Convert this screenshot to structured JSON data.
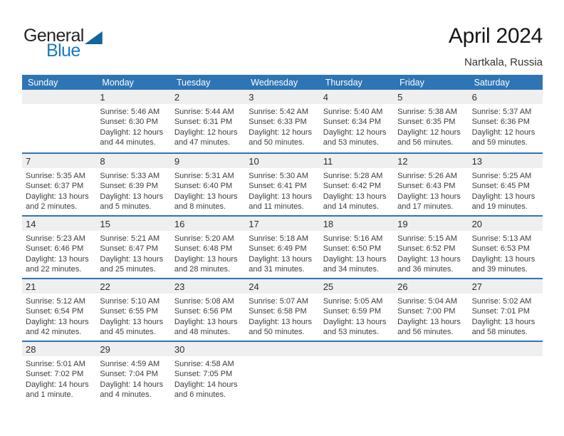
{
  "logo": {
    "part1": "General",
    "part2": "Blue"
  },
  "header": {
    "title": "April 2024",
    "subtitle": "Nartkala, Russia"
  },
  "colors": {
    "header_blue": "#2e75b6",
    "week_divider_blue": "#2e74b5",
    "day_band_gray": "#efefef",
    "logo_text_blue": "#1779c4",
    "logo_triangle_blue": "#14649e"
  },
  "calendar": {
    "weekdays": [
      "Sunday",
      "Monday",
      "Tuesday",
      "Wednesday",
      "Thursday",
      "Friday",
      "Saturday"
    ],
    "weeks": [
      [
        null,
        {
          "day": "1",
          "lines": [
            "Sunrise: 5:46 AM",
            "Sunset: 6:30 PM",
            "Daylight: 12 hours",
            "and 44 minutes."
          ]
        },
        {
          "day": "2",
          "lines": [
            "Sunrise: 5:44 AM",
            "Sunset: 6:31 PM",
            "Daylight: 12 hours",
            "and 47 minutes."
          ]
        },
        {
          "day": "3",
          "lines": [
            "Sunrise: 5:42 AM",
            "Sunset: 6:33 PM",
            "Daylight: 12 hours",
            "and 50 minutes."
          ]
        },
        {
          "day": "4",
          "lines": [
            "Sunrise: 5:40 AM",
            "Sunset: 6:34 PM",
            "Daylight: 12 hours",
            "and 53 minutes."
          ]
        },
        {
          "day": "5",
          "lines": [
            "Sunrise: 5:38 AM",
            "Sunset: 6:35 PM",
            "Daylight: 12 hours",
            "and 56 minutes."
          ]
        },
        {
          "day": "6",
          "lines": [
            "Sunrise: 5:37 AM",
            "Sunset: 6:36 PM",
            "Daylight: 12 hours",
            "and 59 minutes."
          ]
        }
      ],
      [
        {
          "day": "7",
          "lines": [
            "Sunrise: 5:35 AM",
            "Sunset: 6:37 PM",
            "Daylight: 13 hours",
            "and 2 minutes."
          ]
        },
        {
          "day": "8",
          "lines": [
            "Sunrise: 5:33 AM",
            "Sunset: 6:39 PM",
            "Daylight: 13 hours",
            "and 5 minutes."
          ]
        },
        {
          "day": "9",
          "lines": [
            "Sunrise: 5:31 AM",
            "Sunset: 6:40 PM",
            "Daylight: 13 hours",
            "and 8 minutes."
          ]
        },
        {
          "day": "10",
          "lines": [
            "Sunrise: 5:30 AM",
            "Sunset: 6:41 PM",
            "Daylight: 13 hours",
            "and 11 minutes."
          ]
        },
        {
          "day": "11",
          "lines": [
            "Sunrise: 5:28 AM",
            "Sunset: 6:42 PM",
            "Daylight: 13 hours",
            "and 14 minutes."
          ]
        },
        {
          "day": "12",
          "lines": [
            "Sunrise: 5:26 AM",
            "Sunset: 6:43 PM",
            "Daylight: 13 hours",
            "and 17 minutes."
          ]
        },
        {
          "day": "13",
          "lines": [
            "Sunrise: 5:25 AM",
            "Sunset: 6:45 PM",
            "Daylight: 13 hours",
            "and 19 minutes."
          ]
        }
      ],
      [
        {
          "day": "14",
          "lines": [
            "Sunrise: 5:23 AM",
            "Sunset: 6:46 PM",
            "Daylight: 13 hours",
            "and 22 minutes."
          ]
        },
        {
          "day": "15",
          "lines": [
            "Sunrise: 5:21 AM",
            "Sunset: 6:47 PM",
            "Daylight: 13 hours",
            "and 25 minutes."
          ]
        },
        {
          "day": "16",
          "lines": [
            "Sunrise: 5:20 AM",
            "Sunset: 6:48 PM",
            "Daylight: 13 hours",
            "and 28 minutes."
          ]
        },
        {
          "day": "17",
          "lines": [
            "Sunrise: 5:18 AM",
            "Sunset: 6:49 PM",
            "Daylight: 13 hours",
            "and 31 minutes."
          ]
        },
        {
          "day": "18",
          "lines": [
            "Sunrise: 5:16 AM",
            "Sunset: 6:50 PM",
            "Daylight: 13 hours",
            "and 34 minutes."
          ]
        },
        {
          "day": "19",
          "lines": [
            "Sunrise: 5:15 AM",
            "Sunset: 6:52 PM",
            "Daylight: 13 hours",
            "and 36 minutes."
          ]
        },
        {
          "day": "20",
          "lines": [
            "Sunrise: 5:13 AM",
            "Sunset: 6:53 PM",
            "Daylight: 13 hours",
            "and 39 minutes."
          ]
        }
      ],
      [
        {
          "day": "21",
          "lines": [
            "Sunrise: 5:12 AM",
            "Sunset: 6:54 PM",
            "Daylight: 13 hours",
            "and 42 minutes."
          ]
        },
        {
          "day": "22",
          "lines": [
            "Sunrise: 5:10 AM",
            "Sunset: 6:55 PM",
            "Daylight: 13 hours",
            "and 45 minutes."
          ]
        },
        {
          "day": "23",
          "lines": [
            "Sunrise: 5:08 AM",
            "Sunset: 6:56 PM",
            "Daylight: 13 hours",
            "and 48 minutes."
          ]
        },
        {
          "day": "24",
          "lines": [
            "Sunrise: 5:07 AM",
            "Sunset: 6:58 PM",
            "Daylight: 13 hours",
            "and 50 minutes."
          ]
        },
        {
          "day": "25",
          "lines": [
            "Sunrise: 5:05 AM",
            "Sunset: 6:59 PM",
            "Daylight: 13 hours",
            "and 53 minutes."
          ]
        },
        {
          "day": "26",
          "lines": [
            "Sunrise: 5:04 AM",
            "Sunset: 7:00 PM",
            "Daylight: 13 hours",
            "and 56 minutes."
          ]
        },
        {
          "day": "27",
          "lines": [
            "Sunrise: 5:02 AM",
            "Sunset: 7:01 PM",
            "Daylight: 13 hours",
            "and 58 minutes."
          ]
        }
      ],
      [
        {
          "day": "28",
          "lines": [
            "Sunrise: 5:01 AM",
            "Sunset: 7:02 PM",
            "Daylight: 14 hours",
            "and 1 minute."
          ]
        },
        {
          "day": "29",
          "lines": [
            "Sunrise: 4:59 AM",
            "Sunset: 7:04 PM",
            "Daylight: 14 hours",
            "and 4 minutes."
          ]
        },
        {
          "day": "30",
          "lines": [
            "Sunrise: 4:58 AM",
            "Sunset: 7:05 PM",
            "Daylight: 14 hours",
            "and 6 minutes."
          ]
        },
        null,
        null,
        null,
        null
      ]
    ]
  }
}
